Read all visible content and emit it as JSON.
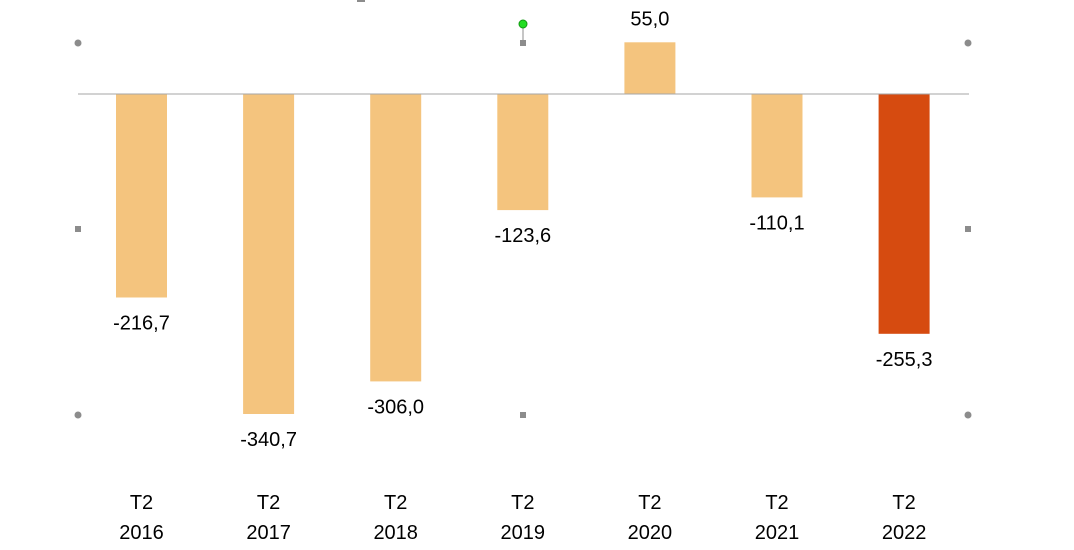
{
  "chart_data": {
    "type": "bar",
    "title": "",
    "xlabel": "",
    "ylabel": "",
    "categories": [
      [
        "T2",
        "2016"
      ],
      [
        "T2",
        "2017"
      ],
      [
        "T2",
        "2018"
      ],
      [
        "T2",
        "2019"
      ],
      [
        "T2",
        "2020"
      ],
      [
        "T2",
        "2021"
      ],
      [
        "T2",
        "2022"
      ]
    ],
    "values": [
      -216.7,
      -340.7,
      -306.0,
      -123.6,
      55.0,
      -110.1,
      -255.3
    ],
    "value_labels": [
      "-216,7",
      "-340,7",
      "-306,0",
      "-123,6",
      "55,0",
      "-110,1",
      "-255,3"
    ],
    "ylim": [
      -340.7,
      55.0
    ],
    "grid": false,
    "legend": "none",
    "colors": {
      "default_bar": "#F4C47E",
      "highlight_bar": "#D64B10",
      "axis_line": "#A6A6A6",
      "selection_handle": "#8C8C8C",
      "rotation_handle": "#22DD22"
    },
    "highlight_index": 6
  }
}
